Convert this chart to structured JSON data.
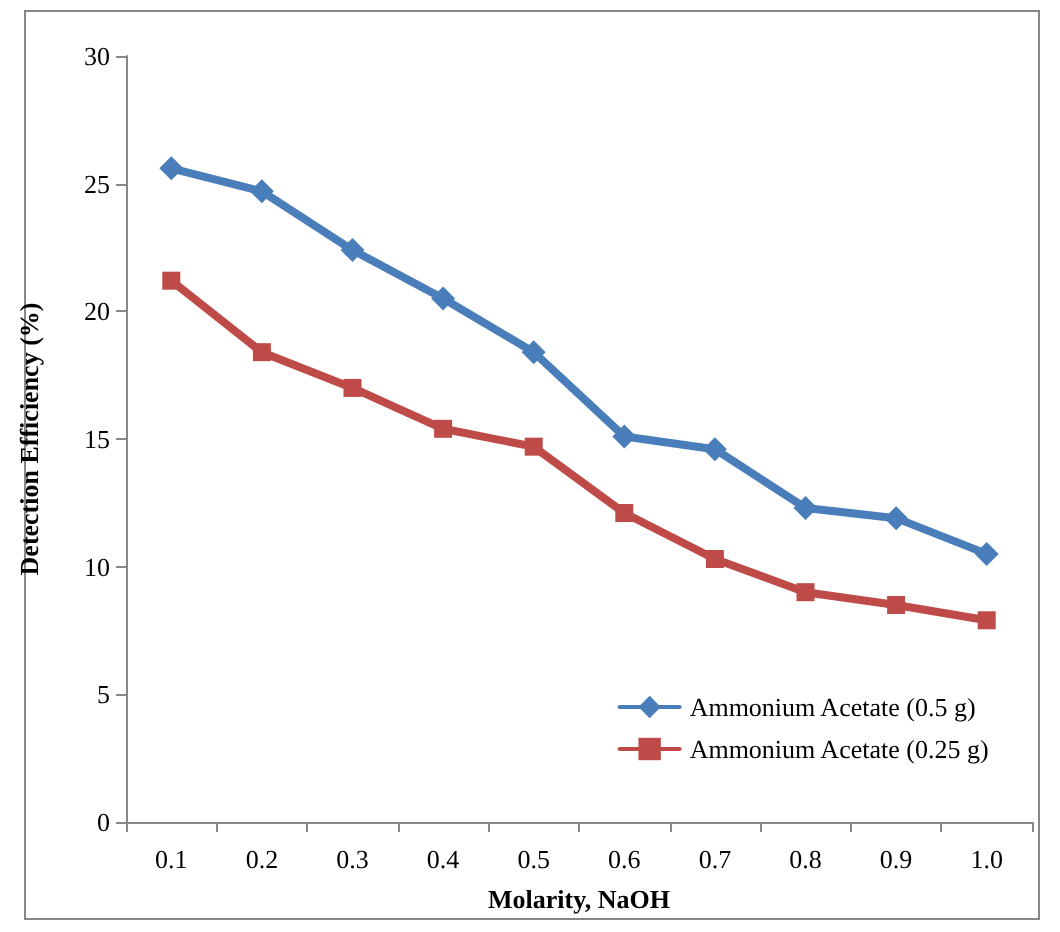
{
  "chart_data": {
    "type": "line",
    "xlabel": "Molarity, NaOH",
    "ylabel": "Detection Efficiency (%)",
    "categories": [
      "0.1",
      "0.2",
      "0.3",
      "0.4",
      "0.5",
      "0.6",
      "0.7",
      "0.8",
      "0.9",
      "1.0"
    ],
    "series": [
      {
        "name": "Ammonium Acetate (0.5 g)",
        "color": "#4a7ebb",
        "marker": "diamond",
        "values": [
          25.6,
          24.7,
          22.4,
          20.5,
          18.4,
          15.1,
          14.6,
          12.3,
          11.9,
          10.5
        ]
      },
      {
        "name": "Ammonium Acetate (0.25 g)",
        "color": "#be4b48",
        "marker": "square",
        "values": [
          21.2,
          18.4,
          17.0,
          15.4,
          14.7,
          12.1,
          10.3,
          9.0,
          8.5,
          7.9
        ]
      }
    ],
    "ylim": [
      0,
      30
    ],
    "yticks": [
      0,
      5,
      10,
      15,
      20,
      25,
      30
    ],
    "grid": false,
    "legend": "bottom right",
    "line_style": "solid"
  }
}
